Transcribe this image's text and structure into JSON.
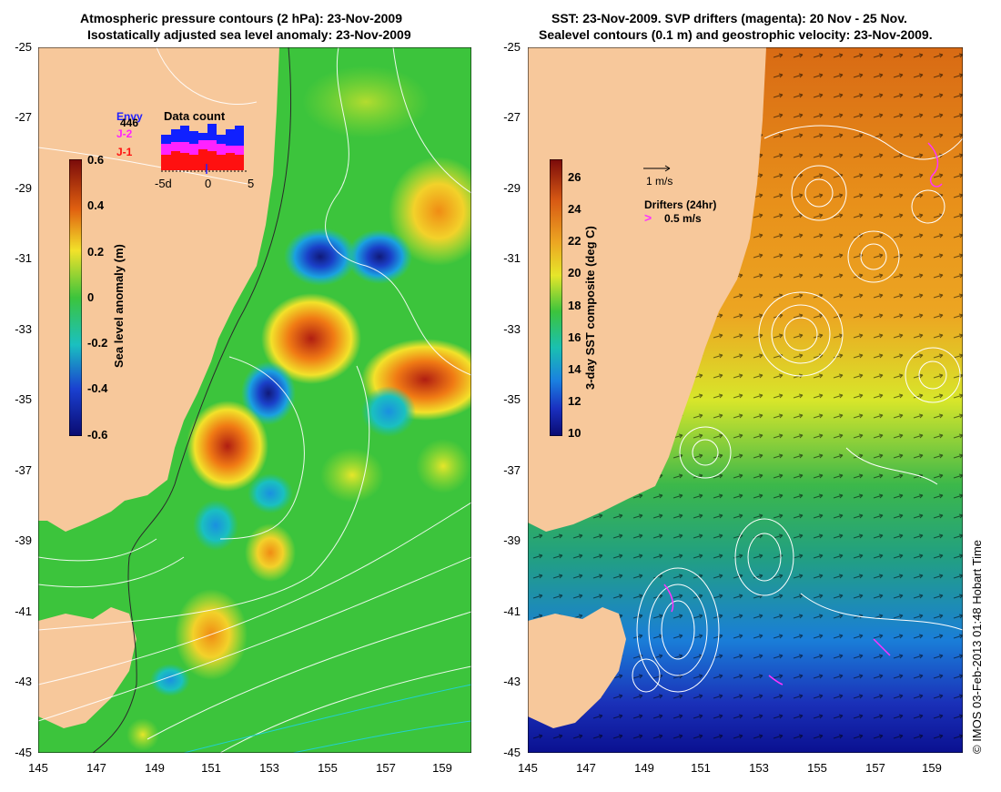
{
  "left_panel": {
    "title_line1": "Atmospheric pressure contours (2 hPa): 23-Nov-2009",
    "title_line2": "Isostatically adjusted sea level anomaly: 23-Nov-2009",
    "colorbar_label": "Sea level anomaly (m)",
    "colorbar_ticks": [
      "0.6",
      "0.4",
      "0.2",
      "0",
      "-0.2",
      "-0.4",
      "-0.6"
    ],
    "inset": {
      "title": "Data count",
      "count_label": "446",
      "legend": [
        "J-2",
        "J-1"
      ],
      "legend_other": "Envy",
      "xticks": [
        "-5d",
        "0",
        "5"
      ]
    }
  },
  "right_panel": {
    "title_line1": "SST: 23-Nov-2009. SVP drifters (magenta): 20 Nov - 25 Nov.",
    "title_line2": "Sealevel contours (0.1 m) and geostrophic velocity: 23-Nov-2009.",
    "colorbar_label": "3-day SST composite (deg C)",
    "colorbar_ticks": [
      "26",
      "24",
      "22",
      "20",
      "18",
      "16",
      "14",
      "12",
      "10"
    ],
    "velocity_key": "1 m/s",
    "drifters_label": "Drifters (24hr)",
    "drifters_speed": "0.5 m/s"
  },
  "axes": {
    "lat_ticks": [
      "-25",
      "-27",
      "-29",
      "-31",
      "-33",
      "-35",
      "-37",
      "-39",
      "-41",
      "-43",
      "-45"
    ],
    "lon_ticks": [
      "145",
      "147",
      "149",
      "151",
      "153",
      "155",
      "157",
      "159"
    ]
  },
  "credit": "© IMOS 03-Feb-2013 01:48 Hobart Time",
  "colors": {
    "land": "#f7c89b",
    "ocean_mid": "#3cc43c",
    "drifter": "#ff33ff"
  }
}
